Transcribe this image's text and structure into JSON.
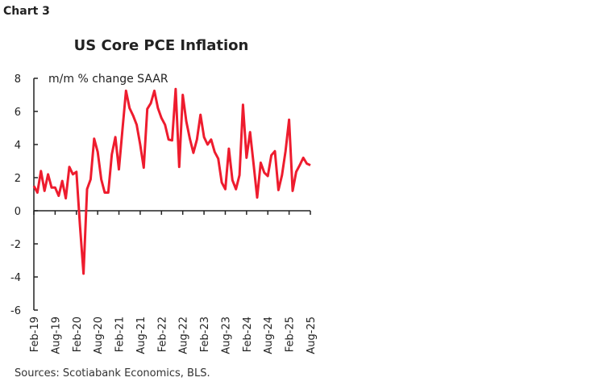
{
  "header": {
    "chart_label": "Chart 3"
  },
  "footer": {
    "source": "Sources: Scotiabank Economics, BLS."
  },
  "chart_data": {
    "type": "line",
    "title": "US Core PCE Inflation",
    "ylabel": "m/m % change SAAR",
    "xlabel": "",
    "ylim": [
      -6,
      8
    ],
    "yticks": [
      -6,
      -4,
      -2,
      0,
      2,
      4,
      6,
      8
    ],
    "x_start": "Feb-19",
    "x_end": "Aug-25",
    "frequency": "monthly",
    "xtick_labels": [
      "Feb-19",
      "Aug-19",
      "Feb-20",
      "Aug-20",
      "Feb-21",
      "Aug-21",
      "Feb-22",
      "Aug-22",
      "Feb-23",
      "Aug-23",
      "Feb-24",
      "Aug-24",
      "Feb-25",
      "Aug-25"
    ],
    "grid": false,
    "color": "#ee1c2e",
    "values": [
      1.5,
      1.1,
      2.4,
      1.2,
      2.2,
      1.4,
      1.4,
      0.9,
      1.8,
      0.75,
      2.65,
      2.2,
      2.35,
      -0.9,
      -3.8,
      1.3,
      1.9,
      4.35,
      3.55,
      1.9,
      1.1,
      1.1,
      3.4,
      4.45,
      2.5,
      4.9,
      7.25,
      6.2,
      5.75,
      5.2,
      4.0,
      2.6,
      6.15,
      6.5,
      7.25,
      6.2,
      5.6,
      5.2,
      4.3,
      4.25,
      7.35,
      2.65,
      7.0,
      5.4,
      4.35,
      3.5,
      4.3,
      5.8,
      4.45,
      4.0,
      4.3,
      3.55,
      3.15,
      1.7,
      1.3,
      3.75,
      1.85,
      1.3,
      2.15,
      6.4,
      3.2,
      4.75,
      2.8,
      0.8,
      2.9,
      2.3,
      2.1,
      3.35,
      3.6,
      1.25,
      2.15,
      3.6,
      5.5,
      1.2,
      2.35,
      2.75,
      3.2,
      2.85,
      2.75
    ]
  }
}
